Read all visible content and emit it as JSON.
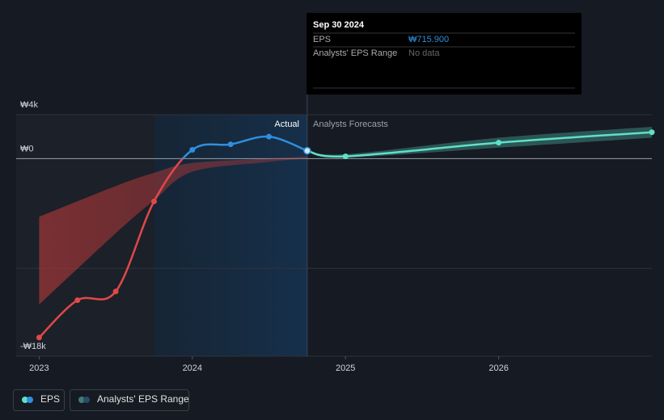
{
  "chart_data": {
    "type": "line",
    "xlim": [
      2022.85,
      2027.0
    ],
    "xticks": [
      2023,
      2024,
      2025,
      2026
    ],
    "ylim": [
      -18000,
      4000
    ],
    "yticks": [
      {
        "value": 4000,
        "label": "₩4k"
      },
      {
        "value": 0,
        "label": "₩0"
      },
      {
        "value": -10000,
        "label": null
      },
      {
        "value": -18000,
        "label": "-₩18k"
      }
    ],
    "grid": true,
    "annotations": {
      "actual": "Actual",
      "forecast": "Analysts Forecasts"
    },
    "series": [
      {
        "name": "EPS",
        "color": "#2f8fdd",
        "negative_color": "#e04848",
        "x": [
          2023.0,
          2023.25,
          2023.5,
          2023.75,
          2024.0,
          2024.25,
          2024.5,
          2024.75
        ],
        "values": [
          -16300,
          -12900,
          -12100,
          -3900,
          800,
          1300,
          2000,
          715.9
        ]
      },
      {
        "color": "#5fe0c8",
        "x": [
          2024.75,
          2025.0,
          2026.0,
          2027.0
        ],
        "values": [
          715.9,
          200,
          1450,
          2400
        ]
      }
    ],
    "ranges": [
      {
        "name": "Analysts' EPS Range",
        "color": "#b83a3a",
        "x": [
          2023.0,
          2023.5,
          2023.75,
          2024.0,
          2024.5,
          2024.75
        ],
        "low": [
          -13300,
          -6800,
          -3800,
          -1200,
          -300,
          0
        ],
        "high": [
          -5300,
          -2500,
          -1300,
          -400,
          0,
          200
        ]
      },
      {
        "color": "#3c7d78",
        "x": [
          2024.75,
          2025.0,
          2026.0,
          2027.0
        ],
        "low": [
          600,
          100,
          1000,
          1900
        ],
        "high": [
          800,
          400,
          1900,
          2900
        ]
      }
    ],
    "tooltip": {
      "title": "Sep 30 2024",
      "eps_label": "EPS",
      "eps_value": "₩715.900",
      "range_label": "Analysts' EPS Range",
      "range_value": "No data"
    }
  }
}
